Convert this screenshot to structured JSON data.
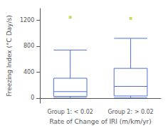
{
  "chart_data": {
    "type": "box",
    "categories": [
      "Group 1: < 0.02",
      "Group 2: > 0.02"
    ],
    "xlabel": "Rate of Change of IRI (m/km/yr)",
    "ylabel": "Freezing Index (°C Day/s)",
    "ylim": [
      -80,
      1380
    ],
    "yticks": [
      0,
      400,
      800,
      1200
    ],
    "grid": false,
    "boxes": [
      {
        "q1": 25,
        "median": 99,
        "q3": 305,
        "whisker_low": 0,
        "whisker_high": 740,
        "outliers": [
          1245
        ]
      },
      {
        "q1": 31,
        "median": 179,
        "q3": 457,
        "whisker_low": 0,
        "whisker_high": 920,
        "outliers": [
          1228
        ]
      }
    ]
  }
}
